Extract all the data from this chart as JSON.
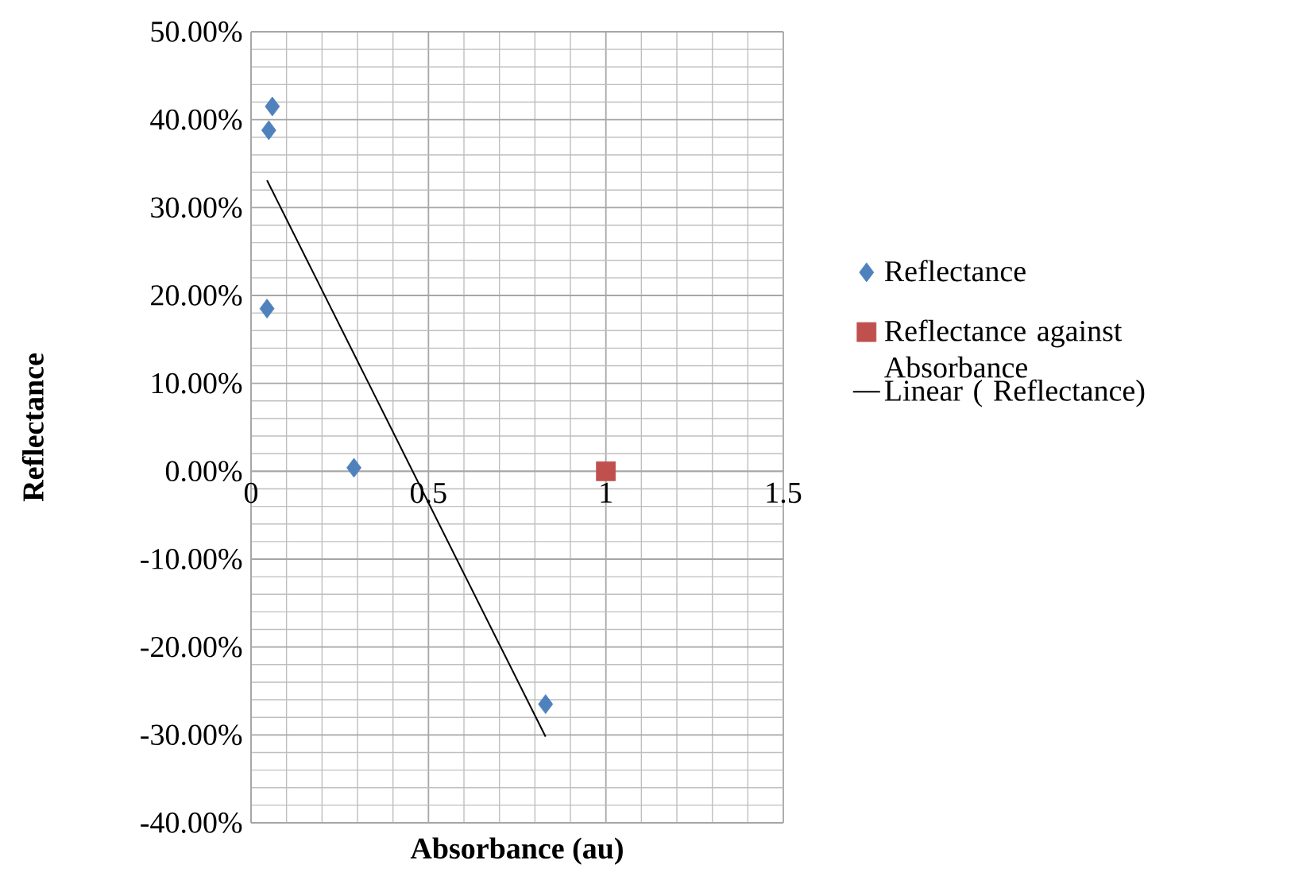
{
  "chart_data": {
    "type": "scatter",
    "xlabel": "Absorbance (au)",
    "ylabel": "Reflectance",
    "xlim": [
      0,
      1.5
    ],
    "ylim": [
      -40,
      50
    ],
    "xticks": [
      0,
      0.5,
      1,
      1.5
    ],
    "yticks": [
      {
        "value": -40,
        "label": "-40.00%"
      },
      {
        "value": -30,
        "label": "-30.00%"
      },
      {
        "value": -20,
        "label": "-20.00%"
      },
      {
        "value": -10,
        "label": "-10.00%"
      },
      {
        "value": 0,
        "label": "0.00%"
      },
      {
        "value": 10,
        "label": "10.00%"
      },
      {
        "value": 20,
        "label": "20.00%"
      },
      {
        "value": 30,
        "label": "30.00%"
      },
      {
        "value": 40,
        "label": "40.00%"
      },
      {
        "value": 50,
        "label": "50.00%"
      }
    ],
    "grid": true,
    "legend": "right",
    "series": [
      {
        "name": "Reflectance",
        "marker": "diamond",
        "color": "#4f81bd",
        "x": [
          0.06,
          0.05,
          0.045,
          0.29,
          0.83
        ],
        "values": [
          41.5,
          38.8,
          18.5,
          0.4,
          -26.5
        ]
      },
      {
        "name": "Reflectance against Absorbance",
        "marker": "square",
        "color": "#c0504d",
        "x": [
          1.0
        ],
        "values": [
          0
        ]
      },
      {
        "name": "Linear ( Reflectance)",
        "type": "line",
        "marker": "none",
        "color": "#000000",
        "x": [
          0.045,
          0.83
        ],
        "values": [
          33.1,
          -30.2
        ]
      }
    ]
  }
}
